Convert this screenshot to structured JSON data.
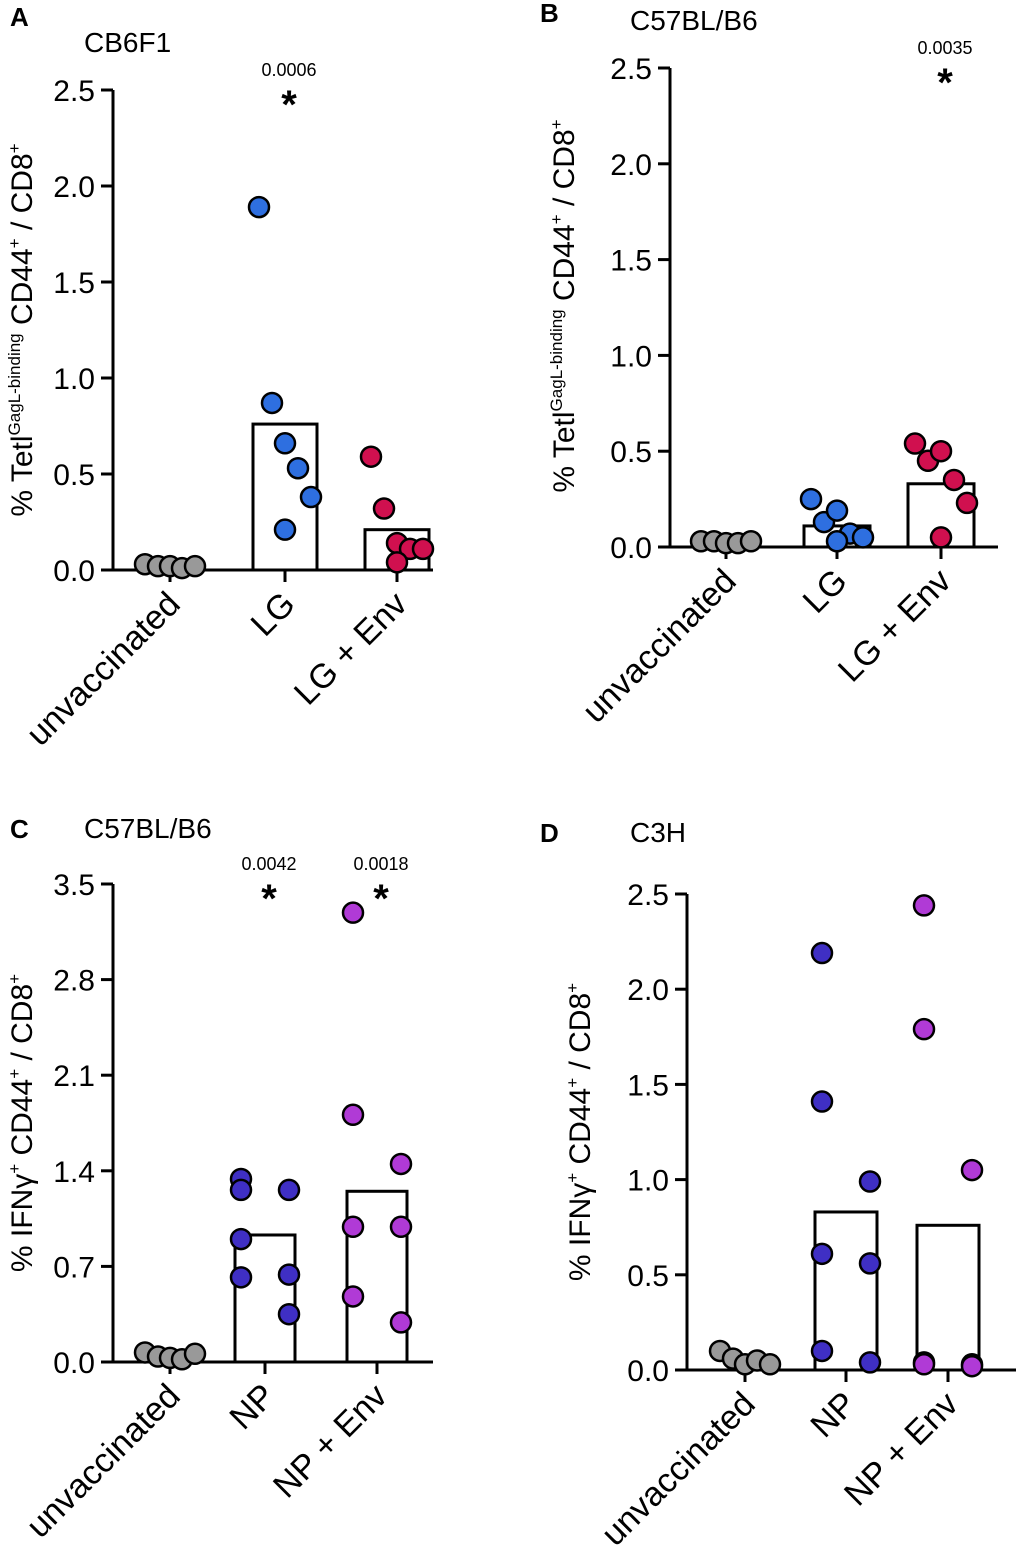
{
  "chart_data": [
    {
      "panel": "A",
      "title": "CB6F1",
      "type": "bar",
      "ylabel": {
        "pre": "% Tetl",
        "sup1": "GagL-binding",
        "mid1": " CD44",
        "sup2": "+",
        "mid2": " / CD8",
        "sup3": "+"
      },
      "ylim": [
        0,
        2.5
      ],
      "yticks": [
        "0.0",
        "0.5",
        "1.0",
        "1.5",
        "2.0",
        "2.5"
      ],
      "categories": [
        "unvaccinated",
        "LG",
        "LG + Env"
      ],
      "colors": [
        "#999999",
        "#2e6fe0",
        "#d0104f"
      ],
      "bars": [
        0,
        0.76,
        0.21
      ],
      "points": [
        [
          0.03,
          0.02,
          0.02,
          0.01,
          0.02
        ],
        [
          1.89,
          0.87,
          0.66,
          0.53,
          0.38,
          0.21
        ],
        [
          0.59,
          0.32,
          0.14,
          0.11,
          0.11,
          0.04
        ]
      ],
      "pvalues": [
        "",
        "0.0006",
        ""
      ],
      "stars": [
        "",
        "*",
        ""
      ]
    },
    {
      "panel": "B",
      "title": "C57BL/B6",
      "type": "bar",
      "ylabel": {
        "pre": "% Tetl",
        "sup1": "GagL-binding",
        "mid1": " CD44",
        "sup2": "+",
        "mid2": " / CD8",
        "sup3": "+"
      },
      "ylim": [
        0,
        2.5
      ],
      "yticks": [
        "0.0",
        "0.5",
        "1.0",
        "1.5",
        "2.0",
        "2.5"
      ],
      "categories": [
        "unvaccinated",
        "LG",
        "LG + Env"
      ],
      "colors": [
        "#999999",
        "#2e6fe0",
        "#d0104f"
      ],
      "bars": [
        0,
        0.11,
        0.33
      ],
      "points": [
        [
          0.03,
          0.03,
          0.02,
          0.02,
          0.03
        ],
        [
          0.25,
          0.13,
          0.19,
          0.07,
          0.05,
          0.03
        ],
        [
          0.54,
          0.45,
          0.5,
          0.35,
          0.23,
          0.05
        ]
      ],
      "pvalues": [
        "",
        "",
        "0.0035"
      ],
      "stars": [
        "",
        "",
        "*"
      ]
    },
    {
      "panel": "C",
      "title": "C57BL/B6",
      "type": "bar",
      "ylabel": {
        "pre": "% IFNγ",
        "sup1": "+",
        "mid1": " CD44",
        "sup2": "+",
        "mid2": " / CD8",
        "sup3": "+"
      },
      "ylim": [
        0,
        3.5
      ],
      "yticks": [
        "0.0",
        "0.7",
        "1.4",
        "2.1",
        "2.8",
        "3.5"
      ],
      "categories": [
        "unvaccinated",
        "NP",
        "NP + Env"
      ],
      "colors": [
        "#999999",
        "#3f2fc4",
        "#b03ad6"
      ],
      "bars": [
        0,
        0.93,
        1.25
      ],
      "points": [
        [
          0.07,
          0.04,
          0.03,
          0.02,
          0.06
        ],
        [
          1.34,
          1.26,
          1.26,
          0.9,
          0.64,
          0.62,
          0.35
        ],
        [
          3.29,
          1.81,
          1.45,
          0.99,
          0.99,
          0.48,
          0.29
        ]
      ],
      "pvalues": [
        "",
        "0.0042",
        "0.0018"
      ],
      "stars": [
        "",
        "*",
        "*"
      ]
    },
    {
      "panel": "D",
      "title": "C3H",
      "type": "bar",
      "ylabel": {
        "pre": "% IFNγ",
        "sup1": "+",
        "mid1": " CD44",
        "sup2": "+",
        "mid2": " / CD8",
        "sup3": "+"
      },
      "ylim": [
        0,
        2.5
      ],
      "yticks": [
        "0.0",
        "0.5",
        "1.0",
        "1.5",
        "2.0",
        "2.5"
      ],
      "categories": [
        "unvaccinated",
        "NP",
        "NP + Env"
      ],
      "colors": [
        "#999999",
        "#3f2fc4",
        "#b03ad6"
      ],
      "bars": [
        0,
        0.83,
        0.76
      ],
      "points": [
        [
          0.1,
          0.06,
          0.03,
          0.05,
          0.03
        ],
        [
          2.19,
          1.41,
          0.99,
          0.61,
          0.56,
          0.1,
          0.04
        ],
        [
          2.44,
          1.79,
          1.05,
          0.04,
          0.03,
          0.03,
          0.02
        ]
      ],
      "pvalues": [
        "",
        "",
        ""
      ],
      "stars": [
        "",
        "",
        ""
      ]
    }
  ]
}
